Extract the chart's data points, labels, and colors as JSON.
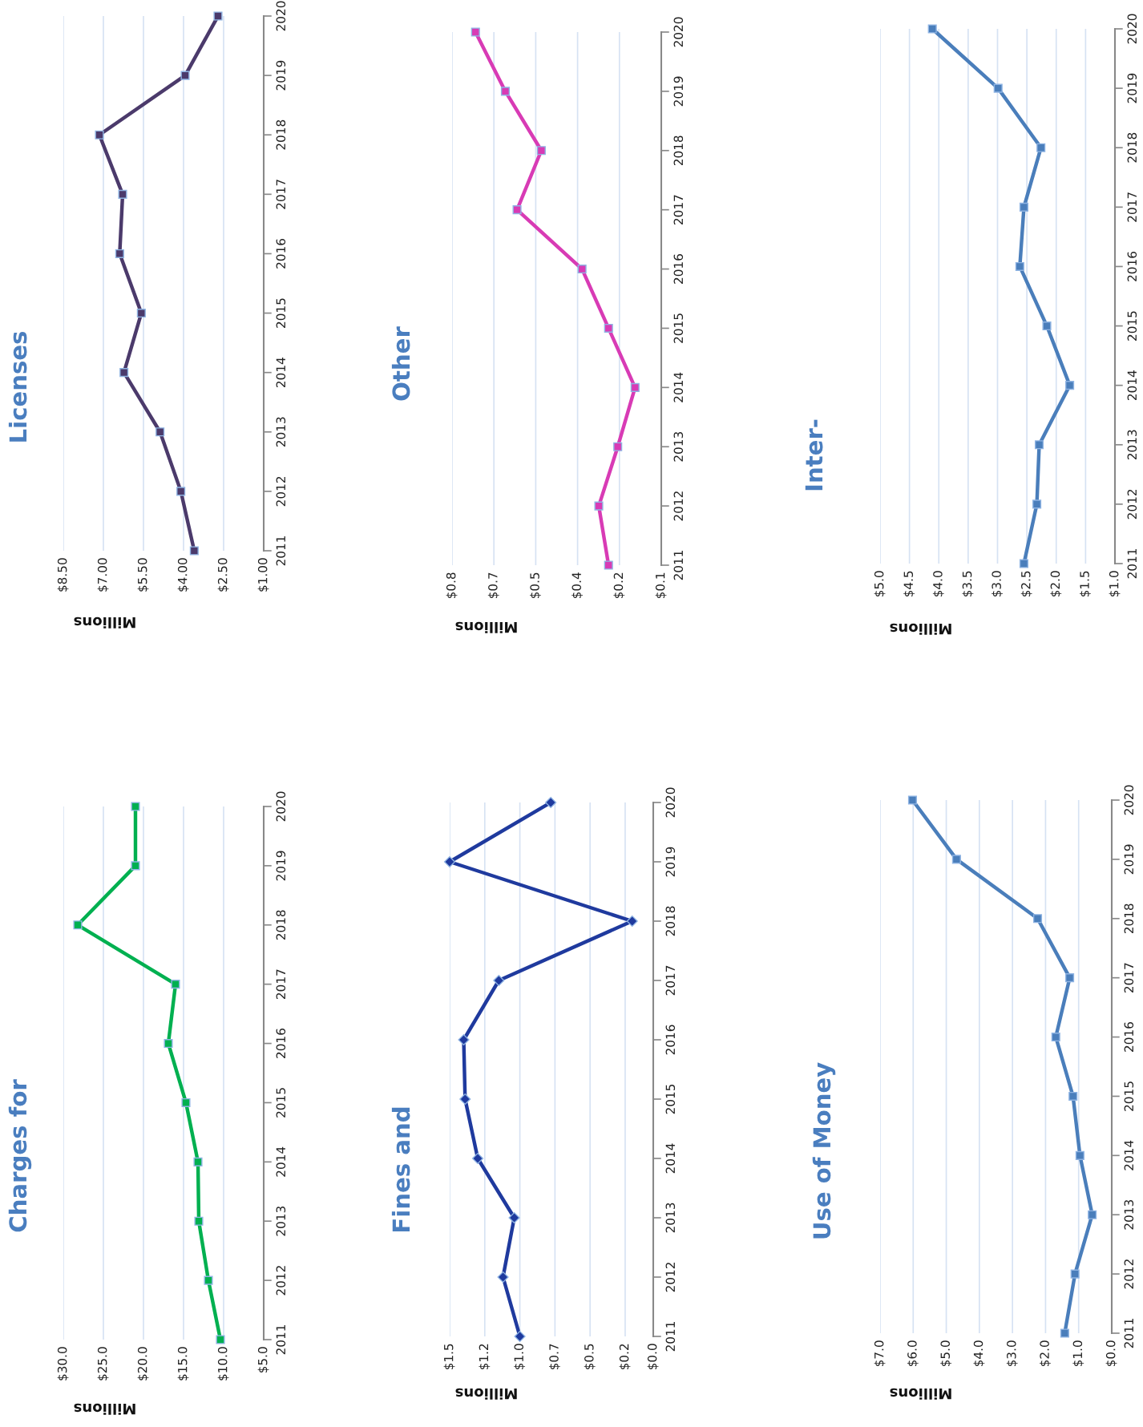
{
  "chart_data": [
    {
      "type": "line",
      "title": "Charges for",
      "xlabel": "Millions",
      "xlim": [
        30,
        5
      ],
      "xticks": [
        {
          "value": 30,
          "label": "$30.0"
        },
        {
          "value": 25,
          "label": "$25.0"
        },
        {
          "value": 20,
          "label": "$20.0"
        },
        {
          "value": 15,
          "label": "$15.0"
        },
        {
          "value": 10,
          "label": "$10.0"
        },
        {
          "value": 5,
          "label": "$5.0"
        }
      ],
      "ylim": [
        2011,
        2020
      ],
      "yticks": [
        2011,
        2012,
        2013,
        2014,
        2015,
        2016,
        2017,
        2018,
        2019,
        2020
      ],
      "grid": "x",
      "marker": "square",
      "series": [
        {
          "color": "#00b050",
          "x": [
            10.4,
            11.9,
            13.1,
            13.2,
            14.7,
            16.9,
            16.0,
            28.2,
            21.0,
            21.0
          ],
          "values": [
            2011,
            2012,
            2013,
            2014,
            2015,
            2016,
            2017,
            2018,
            2019,
            2020
          ]
        }
      ]
    },
    {
      "type": "line",
      "title": "Licenses",
      "xlabel": "Millions",
      "xlim": [
        8.5,
        1
      ],
      "xticks": [
        {
          "value": 8.5,
          "label": "$8.50"
        },
        {
          "value": 7,
          "label": "$7.00"
        },
        {
          "value": 5.5,
          "label": "$5.50"
        },
        {
          "value": 4,
          "label": "$4.00"
        },
        {
          "value": 2.5,
          "label": "$2.50"
        },
        {
          "value": 1,
          "label": "$1.00"
        }
      ],
      "ylim": [
        2011,
        2020
      ],
      "yticks": [
        2011,
        2012,
        2013,
        2014,
        2015,
        2016,
        2017,
        2018,
        2019,
        2020
      ],
      "grid": "x",
      "marker": "square",
      "series": [
        {
          "color": "#4b3a6b",
          "x": [
            3.6,
            4.1,
            4.88,
            6.23,
            5.58,
            6.39,
            6.28,
            7.15,
            3.94,
            2.71
          ],
          "values": [
            2011,
            2012,
            2013,
            2014,
            2015,
            2016,
            2017,
            2018,
            2019,
            2020
          ]
        }
      ]
    },
    {
      "type": "line",
      "title": "Fines and",
      "xlabel": "Millions",
      "xlim": [
        1.5,
        0.05
      ],
      "xticks": [
        {
          "value": 1.5,
          "label": "$1.5"
        },
        {
          "value": 1.25,
          "label": "$1.2"
        },
        {
          "value": 1.0,
          "label": "$1.0"
        },
        {
          "value": 0.75,
          "label": "$0.7"
        },
        {
          "value": 0.5,
          "label": "$0.5"
        },
        {
          "value": 0.25,
          "label": "$0.2"
        },
        {
          "value": 0.05,
          "label": "$0.0"
        }
      ],
      "ylim": [
        2011,
        2020
      ],
      "yticks": [
        2011,
        2012,
        2013,
        2014,
        2015,
        2016,
        2017,
        2018,
        2019,
        2020
      ],
      "grid": "x",
      "marker": "diamond",
      "series": [
        {
          "color": "#1f3a9e",
          "x": [
            1.0,
            1.12,
            1.04,
            1.3,
            1.39,
            1.4,
            1.15,
            0.2,
            1.5,
            0.78
          ],
          "values": [
            2011,
            2012,
            2013,
            2014,
            2015,
            2016,
            2017,
            2018,
            2019,
            2020
          ]
        }
      ]
    },
    {
      "type": "line",
      "title": "Other",
      "xlabel": "Millions",
      "xlim": [
        0.85,
        0.1
      ],
      "xticks": [
        {
          "value": 0.85,
          "label": "$0.8"
        },
        {
          "value": 0.7,
          "label": "$0.7"
        },
        {
          "value": 0.55,
          "label": "$0.5"
        },
        {
          "value": 0.4,
          "label": "$0.4"
        },
        {
          "value": 0.25,
          "label": "$0.2"
        },
        {
          "value": 0.1,
          "label": "$0.1"
        }
      ],
      "ylim": [
        2011,
        2020
      ],
      "yticks": [
        2011,
        2012,
        2013,
        2014,
        2015,
        2016,
        2017,
        2018,
        2019,
        2020
      ],
      "grid": "x",
      "marker": "square",
      "series": [
        {
          "color": "#d83bb5",
          "x": [
            0.289,
            0.324,
            0.256,
            0.194,
            0.289,
            0.384,
            0.617,
            0.53,
            0.659,
            0.766
          ],
          "values": [
            2011,
            2012,
            2013,
            2014,
            2015,
            2016,
            2017,
            2018,
            2019,
            2020
          ]
        }
      ]
    },
    {
      "type": "line",
      "title": "Use of Money",
      "xlabel": "Millions",
      "xlim": [
        7,
        0
      ],
      "xticks": [
        {
          "value": 7,
          "label": "$7.0"
        },
        {
          "value": 6,
          "label": "$6.0"
        },
        {
          "value": 5,
          "label": "$5.0"
        },
        {
          "value": 4,
          "label": "$4.0"
        },
        {
          "value": 3,
          "label": "$3.0"
        },
        {
          "value": 2,
          "label": "$2.0"
        },
        {
          "value": 1,
          "label": "$1.0"
        },
        {
          "value": 0,
          "label": "$0.0"
        }
      ],
      "ylim": [
        2011,
        2020
      ],
      "yticks": [
        2011,
        2012,
        2013,
        2014,
        2015,
        2016,
        2017,
        2018,
        2019,
        2020
      ],
      "grid": "x",
      "marker": "square",
      "series": [
        {
          "color": "#4a7ebb",
          "x": [
            1.42,
            1.11,
            0.59,
            0.96,
            1.17,
            1.69,
            1.27,
            2.24,
            4.69,
            6.02
          ],
          "values": [
            2011,
            2012,
            2013,
            2014,
            2015,
            2016,
            2017,
            2018,
            2019,
            2020
          ]
        }
      ]
    },
    {
      "type": "line",
      "title": "Inter-",
      "xlabel": "Millions",
      "xlim": [
        5,
        1
      ],
      "xticks": [
        {
          "value": 5,
          "label": "$5.0"
        },
        {
          "value": 4.5,
          "label": "$4.5"
        },
        {
          "value": 4,
          "label": "$4.0"
        },
        {
          "value": 3.5,
          "label": "$3.5"
        },
        {
          "value": 3,
          "label": "$3.0"
        },
        {
          "value": 2.5,
          "label": "$2.5"
        },
        {
          "value": 2,
          "label": "$2.0"
        },
        {
          "value": 1.5,
          "label": "$1.5"
        },
        {
          "value": 1,
          "label": "$1.0"
        }
      ],
      "ylim": [
        2011,
        2020
      ],
      "yticks": [
        2011,
        2012,
        2013,
        2014,
        2015,
        2016,
        2017,
        2018,
        2019,
        2020
      ],
      "grid": "x",
      "marker": "square",
      "series": [
        {
          "color": "#4a7ebb",
          "x": [
            2.55,
            2.33,
            2.29,
            1.77,
            2.16,
            2.62,
            2.55,
            2.26,
            2.99,
            4.11
          ],
          "values": [
            2011,
            2012,
            2013,
            2014,
            2015,
            2016,
            2017,
            2018,
            2019,
            2020
          ]
        }
      ]
    }
  ]
}
